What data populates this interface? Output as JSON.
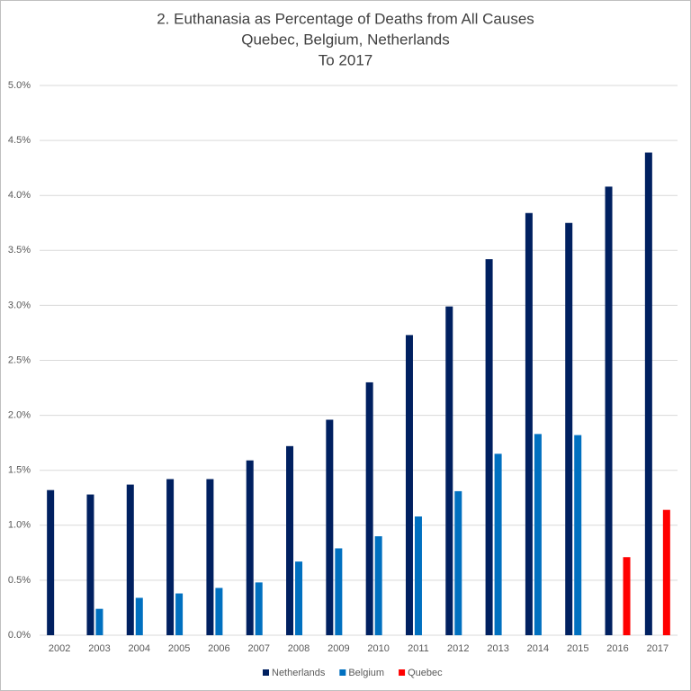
{
  "chart_data": {
    "type": "bar",
    "title": [
      "2. Euthanasia as Percentage of Deaths from All Causes",
      "Quebec, Belgium, Netherlands",
      "To 2017"
    ],
    "categories": [
      "2002",
      "2003",
      "2004",
      "2005",
      "2006",
      "2007",
      "2008",
      "2009",
      "2010",
      "2011",
      "2012",
      "2013",
      "2014",
      "2015",
      "2016",
      "2017"
    ],
    "series": [
      {
        "name": "Netherlands",
        "color": "#002060",
        "values": [
          1.32,
          1.28,
          1.37,
          1.42,
          1.42,
          1.59,
          1.72,
          1.96,
          2.3,
          2.73,
          2.99,
          3.42,
          3.84,
          3.75,
          4.08,
          4.39
        ]
      },
      {
        "name": "Belgium",
        "color": "#0070c0",
        "values": [
          null,
          0.24,
          0.34,
          0.38,
          0.43,
          0.48,
          0.67,
          0.79,
          0.9,
          1.08,
          1.31,
          1.65,
          1.83,
          1.82,
          null,
          null
        ]
      },
      {
        "name": "Quebec",
        "color": "#ff0000",
        "values": [
          null,
          null,
          null,
          null,
          null,
          null,
          null,
          null,
          null,
          null,
          null,
          null,
          null,
          null,
          0.71,
          1.14
        ]
      }
    ],
    "ylim": [
      0,
      5
    ],
    "yticks": [
      {
        "value": 0,
        "label": "0.0%"
      },
      {
        "value": 0.5,
        "label": "0.5%"
      },
      {
        "value": 1,
        "label": "1.0%"
      },
      {
        "value": 1.5,
        "label": "1.5%"
      },
      {
        "value": 2,
        "label": "2.0%"
      },
      {
        "value": 2.5,
        "label": "2.5%"
      },
      {
        "value": 3,
        "label": "3.0%"
      },
      {
        "value": 3.5,
        "label": "3.5%"
      },
      {
        "value": 4,
        "label": "4.0%"
      },
      {
        "value": 4.5,
        "label": "4.5%"
      },
      {
        "value": 5,
        "label": "5.0%"
      }
    ],
    "grid": true,
    "legend": "bottom"
  }
}
